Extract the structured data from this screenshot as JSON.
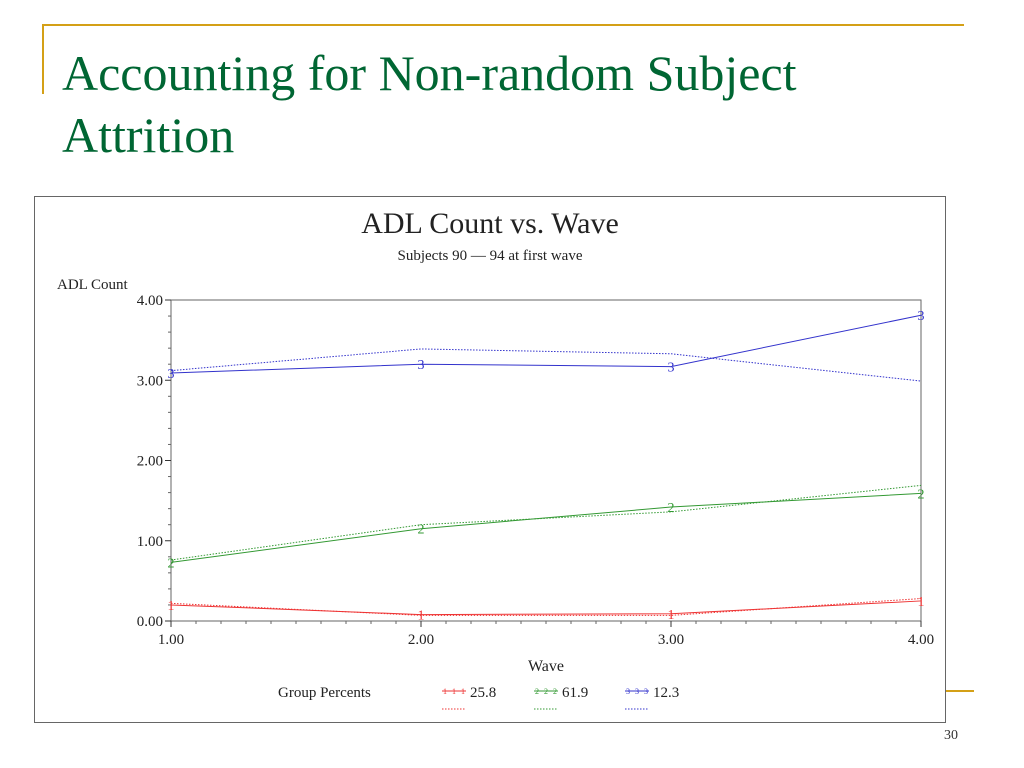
{
  "slide": {
    "title": "Accounting for Non-random Subject Attrition",
    "page_number": "30"
  },
  "colors": {
    "accent": "#d4a017",
    "title": "#006633"
  },
  "chart_data": {
    "type": "line",
    "title": "ADL Count vs. Wave",
    "subtitle": "Subjects 90 — 94 at first wave",
    "xlabel": "Wave",
    "ylabel": "ADL Count",
    "xlim": [
      1,
      4
    ],
    "ylim": [
      0,
      4
    ],
    "x_ticks": [
      "1.00",
      "2.00",
      "3.00",
      "4.00"
    ],
    "y_ticks": [
      "0.00",
      "1.00",
      "2.00",
      "3.00",
      "4.00"
    ],
    "x": [
      1,
      2,
      3,
      4
    ],
    "legend_title": "Group Percents",
    "legend_position": "bottom",
    "grid": false,
    "series": [
      {
        "name": "25.8",
        "marker": "1",
        "color": "#ee3333",
        "observed": [
          0.2,
          0.08,
          0.09,
          0.25
        ],
        "estimated": [
          0.22,
          0.07,
          0.07,
          0.28
        ]
      },
      {
        "name": "61.9",
        "marker": "2",
        "color": "#339933",
        "observed": [
          0.73,
          1.15,
          1.42,
          1.59
        ],
        "estimated": [
          0.76,
          1.2,
          1.36,
          1.69
        ]
      },
      {
        "name": "12.3",
        "marker": "3",
        "color": "#3333cc",
        "observed": [
          3.09,
          3.2,
          3.17,
          3.81
        ],
        "estimated": [
          3.12,
          3.39,
          3.33,
          2.99
        ]
      }
    ]
  }
}
